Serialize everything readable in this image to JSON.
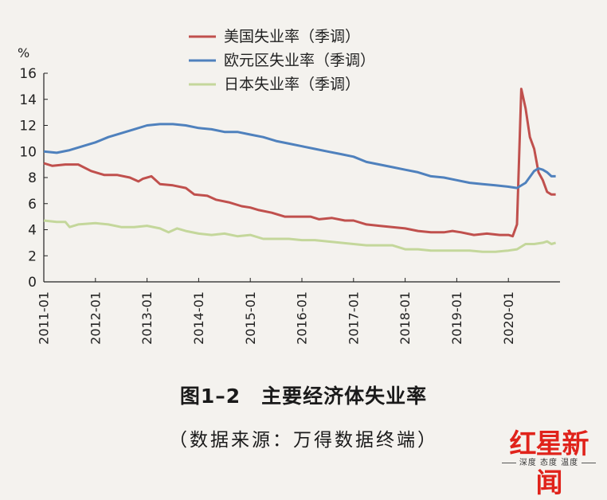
{
  "chart_data": {
    "type": "line",
    "title": "图1–2　主要经济体失业率",
    "source": "（数据来源：万得数据终端）",
    "y_unit": "%",
    "ylim": [
      0,
      16
    ],
    "y_ticks": [
      "0",
      "2",
      "4",
      "6",
      "8",
      "10",
      "12",
      "14",
      "16"
    ],
    "xlim": [
      "2011-01",
      "2020-12"
    ],
    "x_ticks": [
      "2011-01",
      "2012-01",
      "2013-01",
      "2014-01",
      "2015-01",
      "2016-01",
      "2017-01",
      "2018-01",
      "2019-01",
      "2020-01"
    ],
    "legend_position": "top",
    "grid": false,
    "series": [
      {
        "name": "美国失业率（季调）",
        "color": "#c0504d",
        "points": [
          [
            "2011-01",
            9.1
          ],
          [
            "2011-03",
            8.9
          ],
          [
            "2011-06",
            9.0
          ],
          [
            "2011-09",
            9.0
          ],
          [
            "2011-12",
            8.5
          ],
          [
            "2012-03",
            8.2
          ],
          [
            "2012-06",
            8.2
          ],
          [
            "2012-09",
            8.0
          ],
          [
            "2012-11",
            7.7
          ],
          [
            "2012-12",
            7.9
          ],
          [
            "2013-02",
            8.1
          ],
          [
            "2013-04",
            7.5
          ],
          [
            "2013-07",
            7.4
          ],
          [
            "2013-10",
            7.2
          ],
          [
            "2013-12",
            6.7
          ],
          [
            "2014-03",
            6.6
          ],
          [
            "2014-05",
            6.3
          ],
          [
            "2014-08",
            6.1
          ],
          [
            "2014-11",
            5.8
          ],
          [
            "2015-01",
            5.7
          ],
          [
            "2015-03",
            5.5
          ],
          [
            "2015-06",
            5.3
          ],
          [
            "2015-09",
            5.0
          ],
          [
            "2015-12",
            5.0
          ],
          [
            "2016-03",
            5.0
          ],
          [
            "2016-05",
            4.8
          ],
          [
            "2016-08",
            4.9
          ],
          [
            "2016-11",
            4.7
          ],
          [
            "2017-01",
            4.7
          ],
          [
            "2017-04",
            4.4
          ],
          [
            "2017-07",
            4.3
          ],
          [
            "2017-10",
            4.2
          ],
          [
            "2018-01",
            4.1
          ],
          [
            "2018-04",
            3.9
          ],
          [
            "2018-07",
            3.8
          ],
          [
            "2018-10",
            3.8
          ],
          [
            "2018-12",
            3.9
          ],
          [
            "2019-02",
            3.8
          ],
          [
            "2019-05",
            3.6
          ],
          [
            "2019-08",
            3.7
          ],
          [
            "2019-11",
            3.6
          ],
          [
            "2020-01",
            3.6
          ],
          [
            "2020-02",
            3.5
          ],
          [
            "2020-03",
            4.4
          ],
          [
            "2020-04",
            14.8
          ],
          [
            "2020-05",
            13.3
          ],
          [
            "2020-06",
            11.1
          ],
          [
            "2020-07",
            10.2
          ],
          [
            "2020-08",
            8.4
          ],
          [
            "2020-09",
            7.8
          ],
          [
            "2020-10",
            6.9
          ],
          [
            "2020-11",
            6.7
          ],
          [
            "2020-12",
            6.7
          ]
        ]
      },
      {
        "name": "欧元区失业率（季调）",
        "color": "#4f81bd",
        "points": [
          [
            "2011-01",
            10.0
          ],
          [
            "2011-04",
            9.9
          ],
          [
            "2011-07",
            10.1
          ],
          [
            "2011-10",
            10.4
          ],
          [
            "2012-01",
            10.7
          ],
          [
            "2012-04",
            11.1
          ],
          [
            "2012-07",
            11.4
          ],
          [
            "2012-10",
            11.7
          ],
          [
            "2013-01",
            12.0
          ],
          [
            "2013-04",
            12.1
          ],
          [
            "2013-07",
            12.1
          ],
          [
            "2013-10",
            12.0
          ],
          [
            "2014-01",
            11.8
          ],
          [
            "2014-04",
            11.7
          ],
          [
            "2014-07",
            11.5
          ],
          [
            "2014-10",
            11.5
          ],
          [
            "2015-01",
            11.3
          ],
          [
            "2015-04",
            11.1
          ],
          [
            "2015-07",
            10.8
          ],
          [
            "2015-10",
            10.6
          ],
          [
            "2016-01",
            10.4
          ],
          [
            "2016-04",
            10.2
          ],
          [
            "2016-07",
            10.0
          ],
          [
            "2016-10",
            9.8
          ],
          [
            "2017-01",
            9.6
          ],
          [
            "2017-04",
            9.2
          ],
          [
            "2017-07",
            9.0
          ],
          [
            "2017-10",
            8.8
          ],
          [
            "2018-01",
            8.6
          ],
          [
            "2018-04",
            8.4
          ],
          [
            "2018-07",
            8.1
          ],
          [
            "2018-10",
            8.0
          ],
          [
            "2019-01",
            7.8
          ],
          [
            "2019-04",
            7.6
          ],
          [
            "2019-07",
            7.5
          ],
          [
            "2019-10",
            7.4
          ],
          [
            "2020-01",
            7.3
          ],
          [
            "2020-03",
            7.2
          ],
          [
            "2020-05",
            7.6
          ],
          [
            "2020-07",
            8.5
          ],
          [
            "2020-08",
            8.7
          ],
          [
            "2020-09",
            8.6
          ],
          [
            "2020-10",
            8.4
          ],
          [
            "2020-11",
            8.1
          ],
          [
            "2020-12",
            8.1
          ]
        ]
      },
      {
        "name": "日本失业率（季调）",
        "color": "#c4d79b",
        "points": [
          [
            "2011-01",
            4.7
          ],
          [
            "2011-04",
            4.6
          ],
          [
            "2011-06",
            4.6
          ],
          [
            "2011-07",
            4.2
          ],
          [
            "2011-09",
            4.4
          ],
          [
            "2012-01",
            4.5
          ],
          [
            "2012-04",
            4.4
          ],
          [
            "2012-07",
            4.2
          ],
          [
            "2012-10",
            4.2
          ],
          [
            "2013-01",
            4.3
          ],
          [
            "2013-04",
            4.1
          ],
          [
            "2013-06",
            3.8
          ],
          [
            "2013-08",
            4.1
          ],
          [
            "2013-10",
            3.9
          ],
          [
            "2014-01",
            3.7
          ],
          [
            "2014-04",
            3.6
          ],
          [
            "2014-07",
            3.7
          ],
          [
            "2014-10",
            3.5
          ],
          [
            "2015-01",
            3.6
          ],
          [
            "2015-04",
            3.3
          ],
          [
            "2015-07",
            3.3
          ],
          [
            "2015-10",
            3.3
          ],
          [
            "2016-01",
            3.2
          ],
          [
            "2016-04",
            3.2
          ],
          [
            "2016-07",
            3.1
          ],
          [
            "2016-10",
            3.0
          ],
          [
            "2017-01",
            2.9
          ],
          [
            "2017-04",
            2.8
          ],
          [
            "2017-07",
            2.8
          ],
          [
            "2017-10",
            2.8
          ],
          [
            "2018-01",
            2.5
          ],
          [
            "2018-04",
            2.5
          ],
          [
            "2018-07",
            2.4
          ],
          [
            "2018-10",
            2.4
          ],
          [
            "2019-01",
            2.4
          ],
          [
            "2019-04",
            2.4
          ],
          [
            "2019-07",
            2.3
          ],
          [
            "2019-10",
            2.3
          ],
          [
            "2020-01",
            2.4
          ],
          [
            "2020-03",
            2.5
          ],
          [
            "2020-05",
            2.9
          ],
          [
            "2020-07",
            2.9
          ],
          [
            "2020-09",
            3.0
          ],
          [
            "2020-10",
            3.1
          ],
          [
            "2020-11",
            2.9
          ],
          [
            "2020-12",
            3.0
          ]
        ]
      }
    ]
  },
  "logo": {
    "main": "红星新闻",
    "sub": "深度 态度 温度"
  }
}
